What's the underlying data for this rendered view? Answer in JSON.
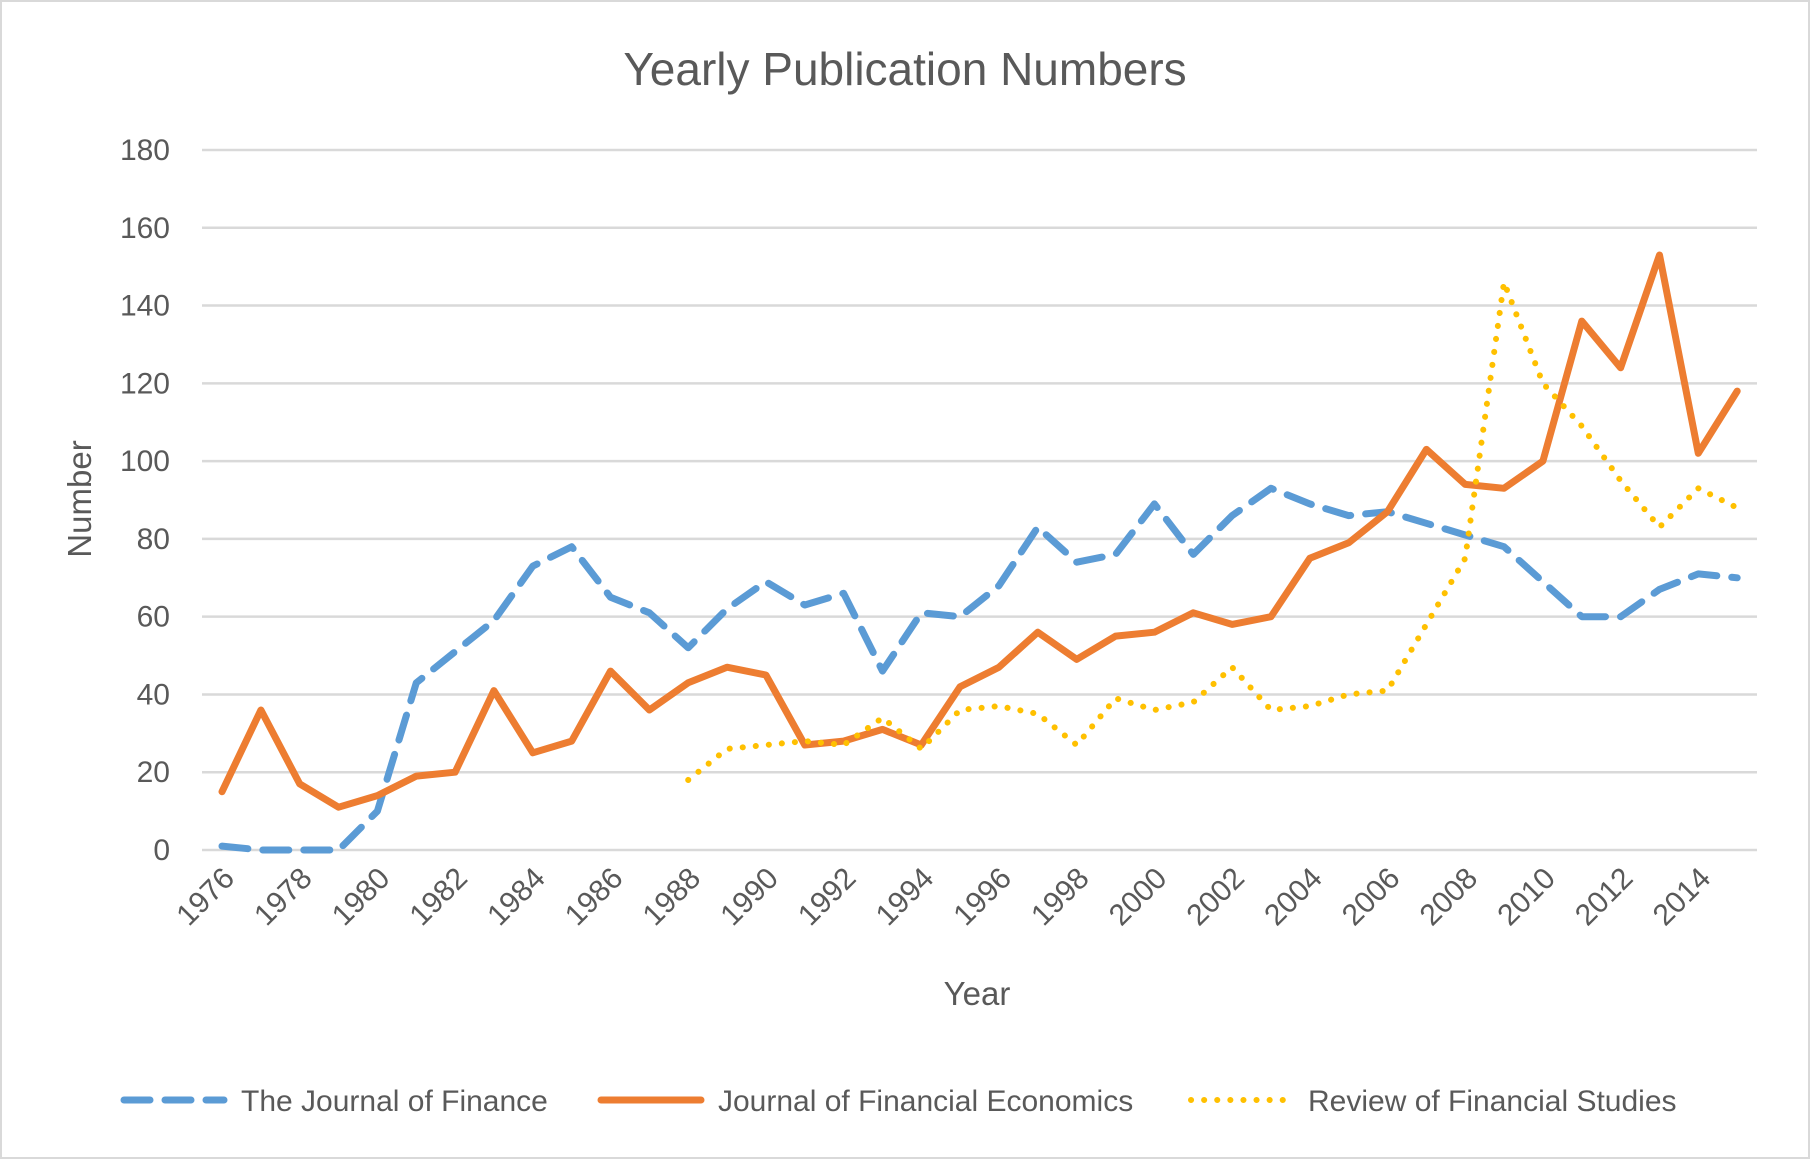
{
  "chart_data": {
    "type": "line",
    "title": "Yearly Publication Numbers",
    "xlabel": "Year",
    "ylabel": "Number",
    "ylim": [
      0,
      180
    ],
    "yticks": [
      "0",
      "20",
      "40",
      "60",
      "80",
      "100",
      "120",
      "140",
      "160",
      "180"
    ],
    "x": [
      1976,
      1977,
      1978,
      1979,
      1980,
      1981,
      1982,
      1983,
      1984,
      1985,
      1986,
      1987,
      1988,
      1989,
      1990,
      1991,
      1992,
      1993,
      1994,
      1995,
      1996,
      1997,
      1998,
      1999,
      2000,
      2001,
      2002,
      2003,
      2004,
      2005,
      2006,
      2007,
      2008,
      2009,
      2010,
      2011,
      2012,
      2013,
      2014,
      2015
    ],
    "xtick_labels": [
      "1976",
      "1978",
      "1980",
      "1982",
      "1984",
      "1986",
      "1988",
      "1990",
      "1992",
      "1994",
      "1996",
      "1998",
      "2000",
      "2002",
      "2004",
      "2006",
      "2008",
      "2010",
      "2012",
      "2014"
    ],
    "grid": true,
    "legend_position": "bottom",
    "series": [
      {
        "name": "The Journal of Finance",
        "color": "#5b9bd5",
        "style": "dashed",
        "values": [
          1,
          0,
          0,
          0,
          10,
          43,
          51,
          59,
          73,
          78,
          65,
          61,
          52,
          62,
          69,
          63,
          66,
          46,
          61,
          60,
          68,
          83,
          74,
          76,
          89,
          76,
          86,
          93,
          89,
          86,
          87,
          84,
          81,
          78,
          69,
          60,
          60,
          67,
          71,
          70
        ]
      },
      {
        "name": "Journal of Financial Economics",
        "color": "#ed7d31",
        "style": "solid",
        "values": [
          15,
          36,
          17,
          11,
          14,
          19,
          20,
          41,
          25,
          28,
          46,
          36,
          43,
          47,
          45,
          27,
          28,
          31,
          27,
          42,
          47,
          56,
          49,
          55,
          56,
          61,
          58,
          60,
          75,
          79,
          87,
          103,
          94,
          93,
          100,
          136,
          124,
          153,
          102,
          118
        ]
      },
      {
        "name": "Review of Financial Studies",
        "color": "#ffc000",
        "style": "dotted",
        "values": [
          null,
          null,
          null,
          null,
          null,
          null,
          null,
          null,
          null,
          null,
          null,
          null,
          18,
          26,
          27,
          28,
          27,
          34,
          26,
          36,
          37,
          35,
          27,
          39,
          36,
          38,
          47,
          36,
          37,
          40,
          41,
          58,
          75,
          146,
          120,
          109,
          95,
          83,
          93,
          88
        ]
      }
    ]
  }
}
